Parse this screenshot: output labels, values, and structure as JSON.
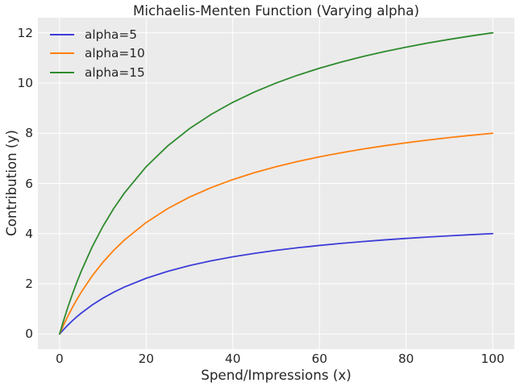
{
  "chart_data": {
    "type": "line",
    "title": "Michaelis-Menten Function (Varying alpha)",
    "xlabel": "Spend/Impressions (x)",
    "ylabel": "Contribution (y)",
    "xlim": [
      -5,
      105
    ],
    "ylim": [
      -0.6,
      12.6
    ],
    "xticks": [
      0,
      20,
      40,
      60,
      80,
      100
    ],
    "yticks": [
      0,
      2,
      4,
      6,
      8,
      10,
      12
    ],
    "grid": true,
    "legend_position": "upper left",
    "x": [
      0,
      1,
      2,
      3,
      4,
      5,
      7.5,
      10,
      12.5,
      15,
      20,
      25,
      30,
      35,
      40,
      45,
      50,
      55,
      60,
      65,
      70,
      75,
      80,
      85,
      90,
      95,
      100
    ],
    "series": [
      {
        "name": "alpha=5",
        "alpha": 5,
        "color": "#3d3dd8",
        "values": [
          0,
          0.192,
          0.37,
          0.536,
          0.69,
          0.833,
          1.154,
          1.429,
          1.667,
          1.875,
          2.222,
          2.5,
          2.727,
          2.917,
          3.077,
          3.214,
          3.333,
          3.438,
          3.529,
          3.611,
          3.684,
          3.75,
          3.81,
          3.864,
          3.913,
          3.958,
          4
        ]
      },
      {
        "name": "alpha=10",
        "alpha": 10,
        "color": "#ff7f0e",
        "values": [
          0,
          0.385,
          0.741,
          1.071,
          1.379,
          1.667,
          2.308,
          2.857,
          3.333,
          3.75,
          4.444,
          5,
          5.455,
          5.833,
          6.154,
          6.429,
          6.667,
          6.875,
          7.059,
          7.222,
          7.368,
          7.5,
          7.619,
          7.727,
          7.826,
          7.917,
          8
        ]
      },
      {
        "name": "alpha=15",
        "alpha": 15,
        "color": "#2e8b2e",
        "values": [
          0,
          0.577,
          1.111,
          1.607,
          2.069,
          2.5,
          3.462,
          4.286,
          5,
          5.625,
          6.667,
          7.5,
          8.182,
          8.75,
          9.231,
          9.643,
          10,
          10.313,
          10.588,
          10.833,
          11.053,
          11.25,
          11.429,
          11.591,
          11.739,
          11.875,
          12
        ]
      }
    ],
    "colors": {
      "figure_bg": "#ffffff",
      "axes_bg": "#ebebeb",
      "grid": "#ffffff",
      "text": "#262626"
    }
  }
}
